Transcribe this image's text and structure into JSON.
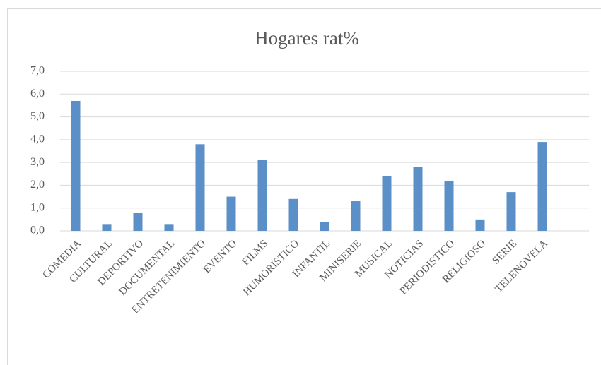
{
  "chart_data": {
    "type": "bar",
    "title": "Hogares rat%",
    "categories": [
      "COMEDIA",
      "CULTURAL",
      "DEPORTIVO",
      "DOCUMENTAL",
      "ENTRETENIMIENTO",
      "EVENTO",
      "FILMS",
      "HUMORISTICO",
      "INFANTIL",
      "MINISERIE",
      "MUSICAL",
      "NOTICIAS",
      "PERIODISTICO",
      "RELIGIOSO",
      "SERIE",
      "TELENOVELA"
    ],
    "values": [
      5.7,
      0.3,
      0.8,
      0.3,
      3.8,
      1.5,
      3.1,
      1.4,
      0.4,
      1.3,
      2.4,
      2.8,
      2.2,
      0.5,
      1.7,
      3.9
    ],
    "color": "#5b8fc7",
    "ylim": [
      0,
      7
    ],
    "yticks": [
      {
        "value": 0,
        "label": "0,0"
      },
      {
        "value": 1,
        "label": "1,0"
      },
      {
        "value": 2,
        "label": "2,0"
      },
      {
        "value": 3,
        "label": "3,0"
      },
      {
        "value": 4,
        "label": "4,0"
      },
      {
        "value": 5,
        "label": "5,0"
      },
      {
        "value": 6,
        "label": "6,0"
      },
      {
        "value": 7,
        "label": "7,0"
      }
    ],
    "grid": true
  }
}
